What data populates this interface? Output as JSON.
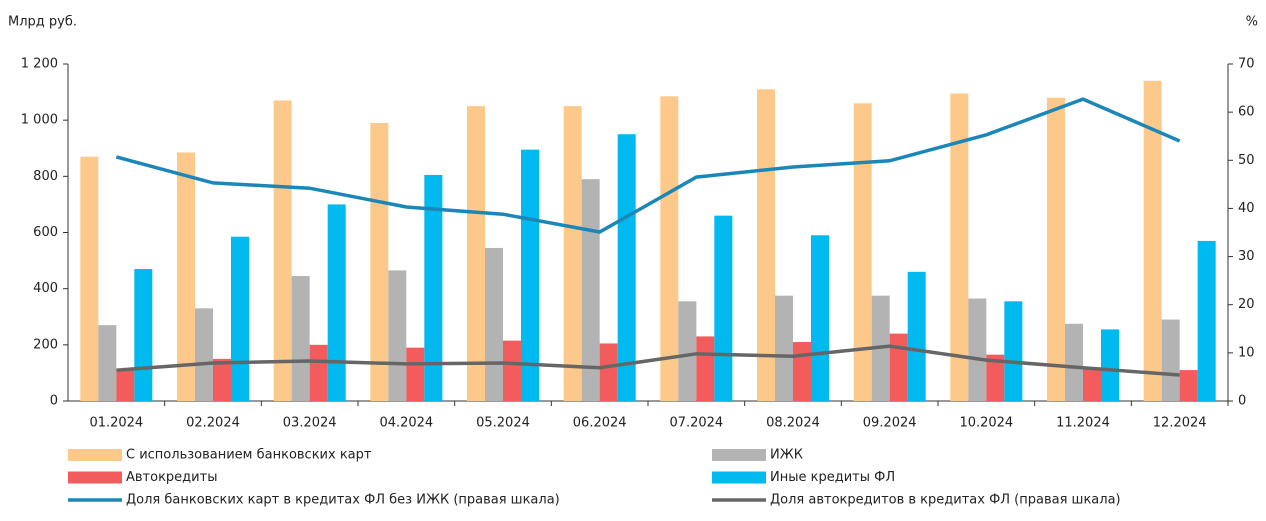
{
  "chart_data": {
    "type": "bar_line",
    "y_label": "Млрд руб.",
    "y2_label": "%",
    "categories": [
      "01.2024",
      "02.2024",
      "03.2024",
      "04.2024",
      "05.2024",
      "06.2024",
      "07.2024",
      "08.2024",
      "09.2024",
      "10.2024",
      "11.2024",
      "12.2024"
    ],
    "series": [
      {
        "name": "С использованием банковских карт",
        "color": "#fdc98a",
        "kind": "bar",
        "values": [
          870,
          885,
          1070,
          990,
          1050,
          1050,
          1085,
          1110,
          1060,
          1095,
          1080,
          1140
        ]
      },
      {
        "name": "ИЖК",
        "color": "#b3b3b3",
        "kind": "bar",
        "values": [
          270,
          330,
          445,
          465,
          545,
          790,
          355,
          375,
          375,
          365,
          275,
          290
        ]
      },
      {
        "name": "Автокредиты",
        "color": "#f25c5c",
        "kind": "bar",
        "values": [
          110,
          150,
          200,
          190,
          215,
          205,
          230,
          210,
          240,
          165,
          120,
          110
        ]
      },
      {
        "name": "Иные кредиты ФЛ",
        "color": "#00b9ee",
        "kind": "bar",
        "values": [
          470,
          585,
          700,
          805,
          895,
          950,
          660,
          590,
          460,
          355,
          255,
          570
        ]
      },
      {
        "name": "Доля банковских карт в кредитах ФЛ без ИЖК (правая шкала)",
        "color": "#1b87b8",
        "kind": "line",
        "axis": "y2",
        "values": [
          50.7,
          45.3,
          44.2,
          40.3,
          38.8,
          35.1,
          46.5,
          48.6,
          49.9,
          55.3,
          62.7,
          54.0
        ]
      },
      {
        "name": "Доля автокредитов в кредитах ФЛ (правая шкала)",
        "color": "#666666",
        "kind": "line",
        "axis": "y2",
        "values": [
          6.4,
          7.9,
          8.3,
          7.7,
          7.9,
          6.9,
          9.8,
          9.3,
          11.4,
          8.5,
          6.9,
          5.4
        ]
      }
    ],
    "ylim": [
      0,
      1200
    ],
    "yticks": [
      0,
      200,
      400,
      600,
      800,
      {
        "value": 1000,
        "label": "1 000"
      },
      {
        "value": 1200,
        "label": "1 200"
      }
    ],
    "y2lim": [
      0,
      70
    ],
    "y2ticks": [
      0,
      10,
      20,
      30,
      40,
      50,
      60,
      70
    ]
  }
}
